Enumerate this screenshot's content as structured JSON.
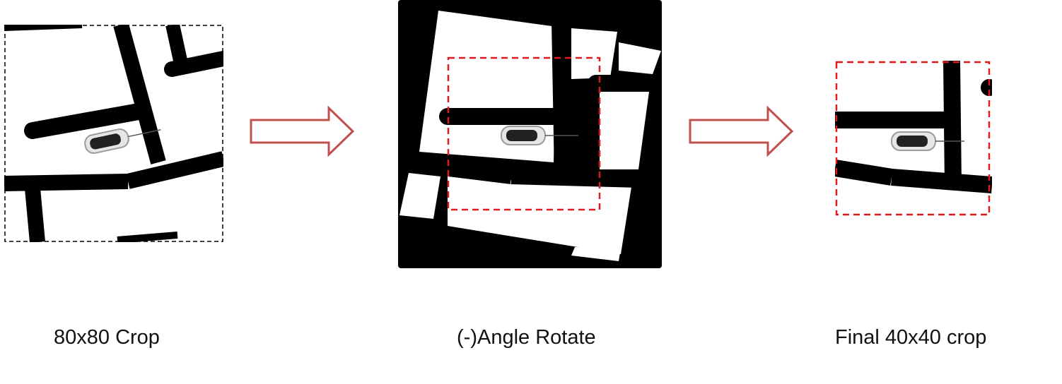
{
  "steps": [
    {
      "caption": "80x80 Crop"
    },
    {
      "caption": "(-)Angle Rotate"
    },
    {
      "caption": "Final 40x40 crop"
    }
  ],
  "colors": {
    "arrow_outline": "#c0504d",
    "crop_box": "#e31a1c",
    "road": "#000000",
    "background": "#ffffff",
    "outer_dashed_border": "#000000"
  },
  "icons": [
    "right-arrow-icon",
    "car-icon"
  ]
}
